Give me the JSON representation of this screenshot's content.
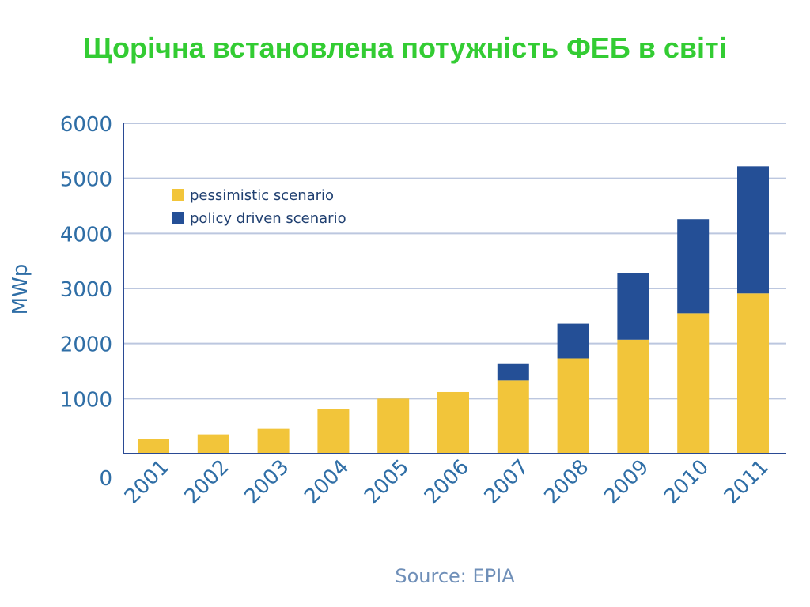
{
  "title": "Щорічна встановлена потужність ФЕБ в світі",
  "source": "Source: EPIA",
  "colors": {
    "title": "#33cc33",
    "pessimistic": "#f2c53a",
    "policy": "#244f96",
    "grid": "#bcc7df",
    "axis": "#2a4a94",
    "text": "#2f6ea6"
  },
  "chart_data": {
    "type": "bar",
    "stacked": true,
    "categories": [
      "2001",
      "2002",
      "2003",
      "2004",
      "2005",
      "2006",
      "2007",
      "2008",
      "2009",
      "2010",
      "2011"
    ],
    "series": [
      {
        "name": "pessimistic scenario",
        "values": [
          270,
          350,
          450,
          810,
          1000,
          1120,
          1330,
          1730,
          2070,
          2550,
          2910
        ]
      },
      {
        "name": "policy driven scenario",
        "values": [
          0,
          0,
          0,
          0,
          0,
          0,
          310,
          630,
          1210,
          1710,
          2310
        ]
      }
    ],
    "ylabel": "MWp",
    "xlabel": "",
    "ylim": [
      0,
      6000
    ],
    "yticks": [
      "0",
      "1000",
      "2000",
      "3000",
      "4000",
      "5000",
      "6000"
    ],
    "grid": true,
    "legend_position": "top-left"
  }
}
